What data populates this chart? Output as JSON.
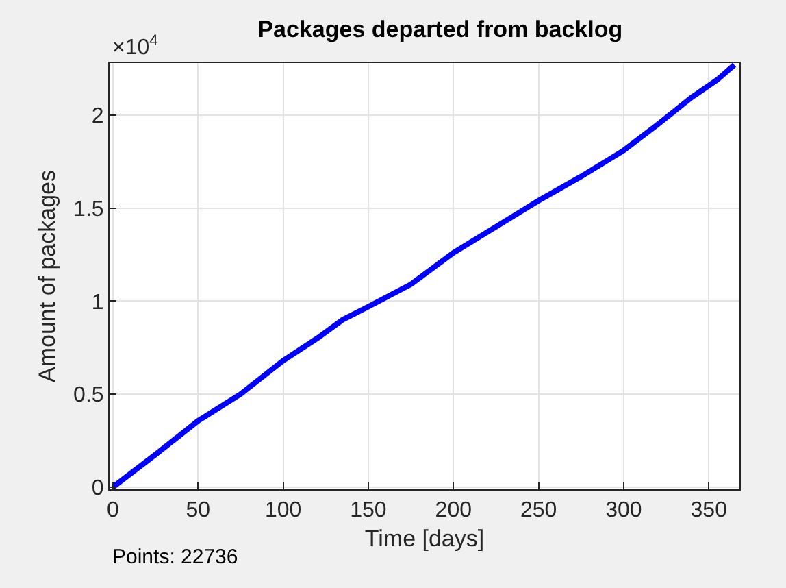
{
  "chart_data": {
    "type": "line",
    "title": "Packages departed from backlog",
    "xlabel": "Time [days]",
    "ylabel": "Amount of packages",
    "x": [
      0,
      10,
      25,
      50,
      75,
      100,
      120,
      135,
      150,
      175,
      200,
      225,
      250,
      275,
      300,
      320,
      340,
      355,
      365
    ],
    "series": [
      {
        "color": "#0000ff",
        "values": [
          0,
          0.07,
          0.175,
          0.356,
          0.5,
          0.68,
          0.8,
          0.9,
          0.97,
          1.09,
          1.26,
          1.4,
          1.54,
          1.67,
          1.81,
          1.95,
          2.096,
          2.19,
          2.27
        ]
      }
    ],
    "xlim": [
      -2,
      368
    ],
    "xticks": [
      0,
      50,
      100,
      150,
      200,
      250,
      300,
      350
    ],
    "ylim": [
      -0.012,
      2.28
    ],
    "yticks": [
      0,
      0.5,
      1,
      1.5,
      2
    ],
    "annotations": [
      "×10$^{4}$",
      "Points: 22736"
    ],
    "grid": true,
    "marker": "none",
    "line_style": "solid"
  }
}
